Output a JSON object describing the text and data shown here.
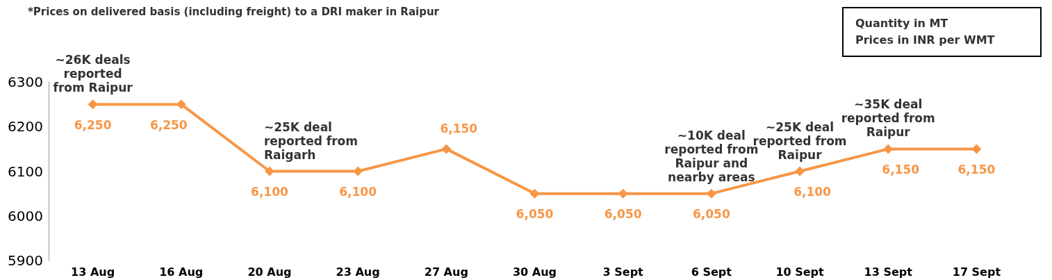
{
  "chart_data": {
    "type": "line",
    "title": "*Prices on delivered basis (including freight) to a DRI maker in Raipur",
    "categories": [
      "13 Aug",
      "16 Aug",
      "20 Aug",
      "23 Aug",
      "27 Aug",
      "30 Aug",
      "3 Sept",
      "6 Sept",
      "10 Sept",
      "13 Sept",
      "17 Sept"
    ],
    "series": [
      {
        "color": "#f79646",
        "values": [
          6250,
          6250,
          6100,
          6100,
          6150,
          6050,
          6050,
          6050,
          6100,
          6150,
          6150
        ],
        "value_labels": [
          "6,250",
          "6,250",
          "6,100",
          "6,100",
          "6,150",
          "6,050",
          "6,050",
          "6,050",
          "6,100",
          "6,150",
          "6,150"
        ]
      }
    ],
    "ylim": [
      5900,
      6300
    ],
    "yticks": [
      5900,
      6000,
      6100,
      6200,
      6300
    ],
    "grid": false,
    "marker": "diamond",
    "line_style": "solid",
    "annotations": [
      {
        "text": "~26K deals\nreported\nfrom Raipur",
        "x": "13 Aug",
        "y": 6250
      },
      {
        "text": "~25K deal\nreported from\nRaigarh",
        "x": "20 Aug",
        "y": 6100
      },
      {
        "text": "~10K deal\nreported from\nRaipur and\nnearby areas",
        "x": "6 Sept",
        "y": 6050
      },
      {
        "text": "~25K deal\nreported from\nRaipur",
        "x": "10 Sept",
        "y": 6100
      },
      {
        "text": "~35K deal\nreported from\nRaipur",
        "x": "13 Sept",
        "y": 6150
      },
      "Quantity in MT\nPrices in INR per WMT"
    ]
  }
}
